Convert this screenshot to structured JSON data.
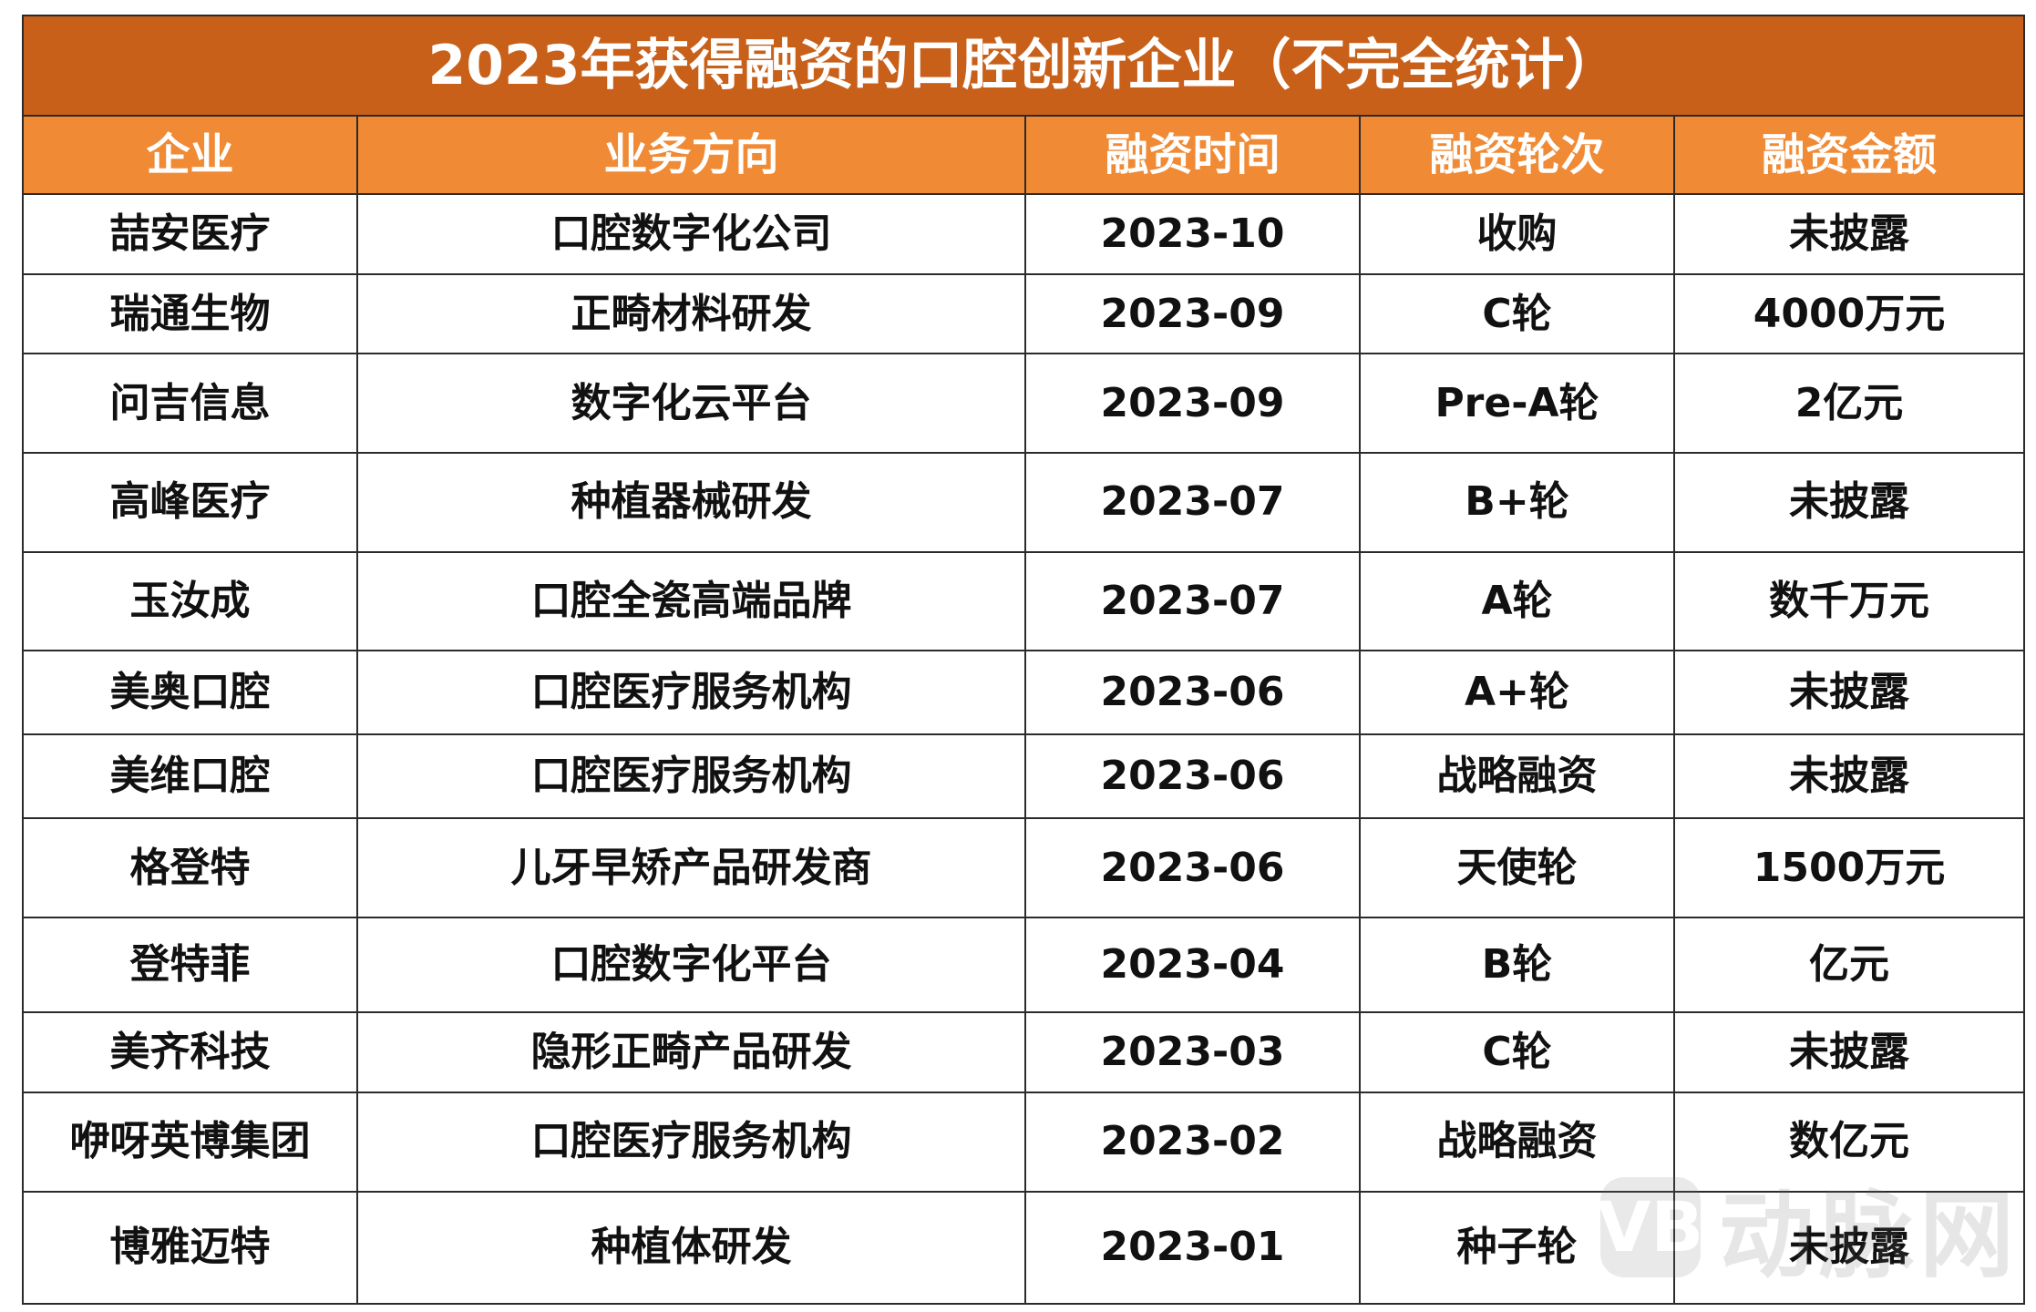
{
  "table": {
    "title": "2023年获得融资的口腔创新企业（不完全统计）",
    "columns": [
      "企业",
      "业务方向",
      "融资时间",
      "融资轮次",
      "融资金额"
    ],
    "rows": [
      [
        "喆安医疗",
        "口腔数字化公司",
        "2023-10",
        "收购",
        "未披露"
      ],
      [
        "瑞通生物",
        "正畸材料研发",
        "2023-09",
        "C轮",
        "4000万元"
      ],
      [
        "问吉信息",
        "数字化云平台",
        "2023-09",
        "Pre-A轮",
        "2亿元"
      ],
      [
        "高峰医疗",
        "种植器械研发",
        "2023-07",
        "B+轮",
        "未披露"
      ],
      [
        "玉汝成",
        "口腔全瓷高端品牌",
        "2023-07",
        "A轮",
        "数千万元"
      ],
      [
        "美奥口腔",
        "口腔医疗服务机构",
        "2023-06",
        "A+轮",
        "未披露"
      ],
      [
        "美维口腔",
        "口腔医疗服务机构",
        "2023-06",
        "战略融资",
        "未披露"
      ],
      [
        "格登特",
        "儿牙早矫产品研发商",
        "2023-06",
        "天使轮",
        "1500万元"
      ],
      [
        "登特菲",
        "口腔数字化平台",
        "2023-04",
        "B轮",
        "亿元"
      ],
      [
        "美齐科技",
        "隐形正畸产品研发",
        "2023-03",
        "C轮",
        "未披露"
      ],
      [
        "咿呀英博集团",
        "口腔医疗服务机构",
        "2023-02",
        "战略融资",
        "数亿元"
      ],
      [
        "博雅迈特",
        "种植体研发",
        "2023-01",
        "种子轮",
        "未披露"
      ]
    ]
  },
  "watermark": {
    "logo_glyph": "VB",
    "text": "动脉网"
  },
  "colors": {
    "title_bg": "#c8601a",
    "header_bg": "#f08a34",
    "border": "#2b2b2b"
  }
}
